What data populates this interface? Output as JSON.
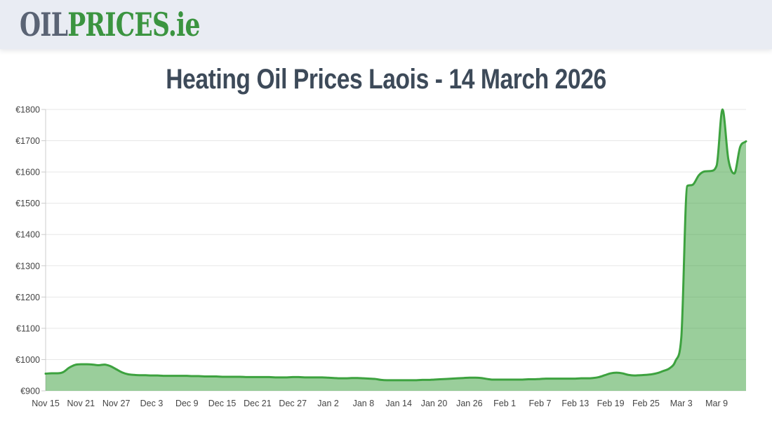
{
  "header": {
    "logo": {
      "oil": "OIL",
      "prices": "PRICES",
      "tld": ".ie"
    }
  },
  "page_title": "Heating Oil Prices Laois - 14 March 2026",
  "colors": {
    "header_bg": "#e9ecf3",
    "logo_gray": "#5a6374",
    "logo_green": "#3b9440",
    "title_text": "#3d4a59",
    "line_green": "#3da23f",
    "fill_green": "#3da23f",
    "fill_opacity": 0.52,
    "gridline": "#e7e7e7",
    "axis_line": "#cccccc",
    "tick_label": "#444444"
  },
  "chart_data": {
    "type": "area",
    "title": "Heating Oil Prices Laois - 14 March 2026",
    "currency_prefix": "€",
    "ylim": [
      900,
      1800
    ],
    "y_ticks": [
      900,
      1000,
      1100,
      1200,
      1300,
      1400,
      1500,
      1600,
      1700,
      1800
    ],
    "y_tick_labels": [
      "€900",
      "€1000",
      "€1100",
      "€1200",
      "€1300",
      "€1400",
      "€1500",
      "€1600",
      "€1700",
      "€1800"
    ],
    "x_tick_labels": [
      "Nov 15",
      "Nov 21",
      "Nov 27",
      "Dec 3",
      "Dec 9",
      "Dec 15",
      "Dec 21",
      "Dec 27",
      "Jan 2",
      "Jan 8",
      "Jan 14",
      "Jan 20",
      "Jan 26",
      "Feb 1",
      "Feb 7",
      "Feb 13",
      "Feb 19",
      "Feb 25",
      "Mar 3",
      "Mar 9"
    ],
    "x_tick_every_n_points": 6,
    "x_range_note": "daily prices from Nov 15 to Mar 14",
    "grid": true,
    "legend": false,
    "smoothed": true,
    "values": [
      955,
      956,
      956,
      960,
      974,
      983,
      985,
      985,
      984,
      982,
      984,
      979,
      969,
      959,
      953,
      951,
      950,
      950,
      949,
      949,
      948,
      948,
      948,
      948,
      948,
      947,
      947,
      946,
      946,
      946,
      945,
      945,
      945,
      945,
      944,
      944,
      944,
      944,
      944,
      943,
      943,
      943,
      944,
      944,
      943,
      943,
      943,
      943,
      942,
      941,
      940,
      940,
      941,
      941,
      940,
      939,
      938,
      935,
      934,
      934,
      934,
      934,
      934,
      934,
      935,
      935,
      936,
      937,
      938,
      939,
      940,
      941,
      942,
      942,
      941,
      938,
      936,
      936,
      936,
      936,
      936,
      936,
      937,
      937,
      938,
      939,
      939,
      939,
      939,
      939,
      939,
      940,
      940,
      941,
      944,
      950,
      956,
      958,
      956,
      951,
      949,
      950,
      951,
      953,
      957,
      964,
      972,
      995,
      1070,
      1555,
      1560,
      1590,
      1602,
      1603,
      1620,
      1800,
      1640,
      1595,
      1680,
      1698
    ]
  }
}
